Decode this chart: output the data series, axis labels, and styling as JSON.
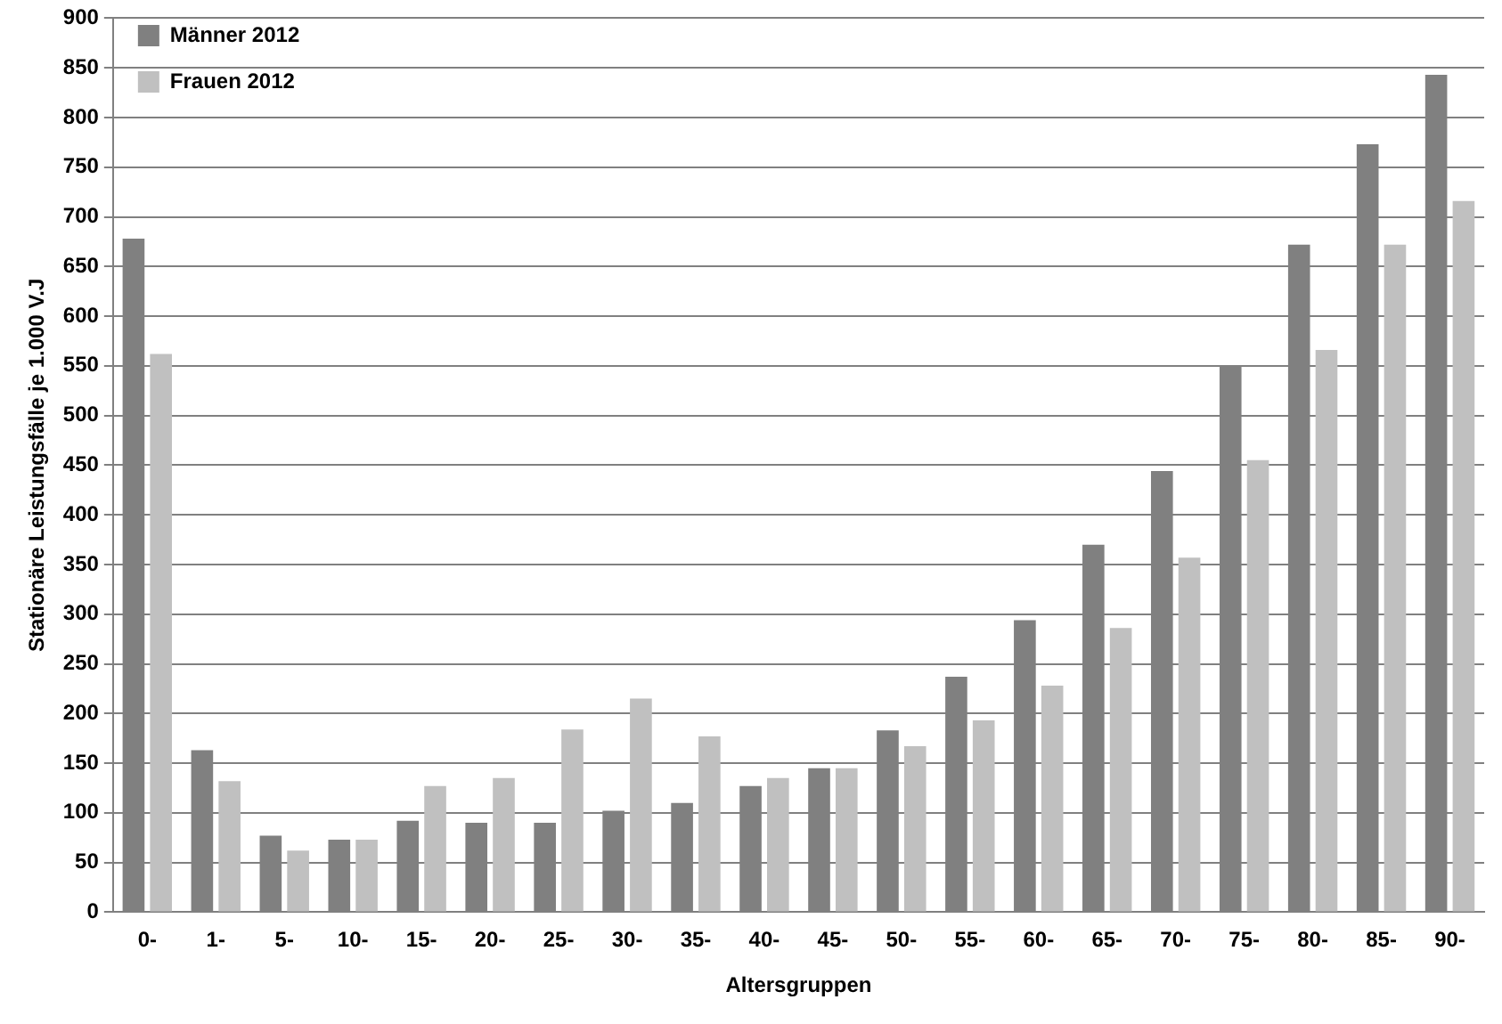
{
  "chart_data": {
    "type": "bar",
    "xlabel": "Altersgruppen",
    "ylabel": "Stationäre Leistungsfälle je 1.000 V.J",
    "categories": [
      "0-",
      "1-",
      "5-",
      "10-",
      "15-",
      "20-",
      "25-",
      "30-",
      "35-",
      "40-",
      "45-",
      "50-",
      "55-",
      "60-",
      "65-",
      "70-",
      "75-",
      "80-",
      "85-",
      "90-"
    ],
    "series": [
      {
        "name": "Männer 2012",
        "color": "#808080",
        "values": [
          678,
          163,
          77,
          73,
          92,
          90,
          90,
          102,
          110,
          127,
          145,
          183,
          237,
          294,
          370,
          444,
          549,
          672,
          773,
          843
        ]
      },
      {
        "name": "Frauen 2012",
        "color": "#c0c0c0",
        "values": [
          562,
          132,
          62,
          73,
          127,
          135,
          184,
          215,
          177,
          135,
          145,
          167,
          193,
          228,
          286,
          357,
          455,
          566,
          672,
          716
        ]
      }
    ],
    "ylim": [
      0,
      900
    ],
    "yticks": [
      0,
      50,
      100,
      150,
      200,
      250,
      300,
      350,
      400,
      450,
      500,
      550,
      600,
      650,
      700,
      750,
      800,
      850,
      900
    ],
    "grid": "y",
    "legend": "top left"
  }
}
